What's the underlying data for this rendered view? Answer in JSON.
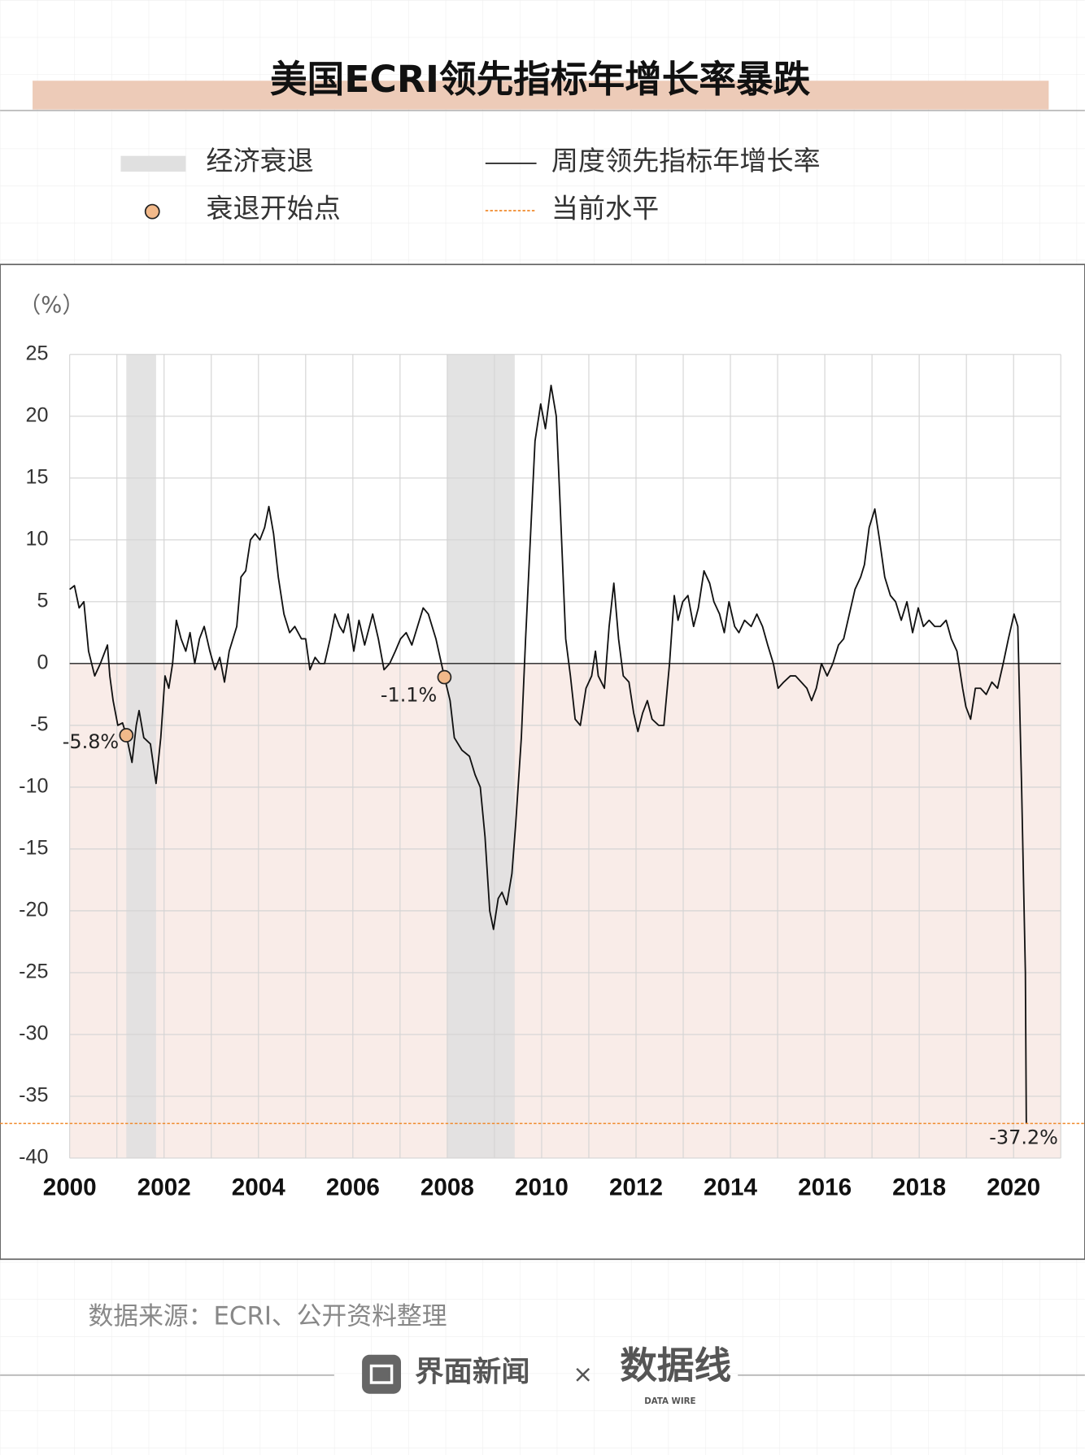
{
  "chart_data": {
    "type": "line",
    "title": "美国ECRI领先指标年增长率暴跌",
    "y_unit": "（%）",
    "x": [
      2000.0,
      2000.1,
      2000.2,
      2000.3,
      2000.4,
      2000.53,
      2000.65,
      2000.8,
      2000.85,
      2000.92,
      2001.02,
      2001.12,
      2001.2,
      2001.32,
      2001.41,
      2001.47,
      2001.57,
      2001.71,
      2001.83,
      2001.93,
      2002.02,
      2002.1,
      2002.18,
      2002.26,
      2002.36,
      2002.46,
      2002.55,
      2002.65,
      2002.75,
      2002.85,
      2002.97,
      2003.08,
      2003.18,
      2003.28,
      2003.38,
      2003.54,
      2003.63,
      2003.73,
      2003.83,
      2003.93,
      2004.03,
      2004.13,
      2004.22,
      2004.32,
      2004.42,
      2004.54,
      2004.66,
      2004.77,
      2004.91,
      2005.0,
      2005.09,
      2005.2,
      2005.3,
      2005.4,
      2005.52,
      2005.62,
      2005.72,
      2005.8,
      2005.9,
      2006.02,
      2006.13,
      2006.25,
      2006.42,
      2006.54,
      2006.66,
      2006.78,
      2006.9,
      2007.01,
      2007.13,
      2007.25,
      2007.37,
      2007.49,
      2007.6,
      2007.76,
      2007.94,
      2008.06,
      2008.15,
      2008.31,
      2008.47,
      2008.59,
      2008.7,
      2008.8,
      2008.9,
      2008.98,
      2009.08,
      2009.16,
      2009.26,
      2009.37,
      2009.45,
      2009.57,
      2009.66,
      2009.76,
      2009.86,
      2009.98,
      2010.08,
      2010.2,
      2010.31,
      2010.39,
      2010.51,
      2010.61,
      2010.71,
      2010.82,
      2010.94,
      2011.06,
      2011.14,
      2011.2,
      2011.33,
      2011.43,
      2011.53,
      2011.63,
      2011.73,
      2011.85,
      2011.95,
      2012.04,
      2012.14,
      2012.24,
      2012.34,
      2012.48,
      2012.59,
      2012.71,
      2012.81,
      2012.89,
      2012.99,
      2013.1,
      2013.22,
      2013.32,
      2013.44,
      2013.56,
      2013.65,
      2013.77,
      2013.87,
      2013.97,
      2014.09,
      2014.18,
      2014.3,
      2014.44,
      2014.56,
      2014.68,
      2014.79,
      2014.91,
      2015.01,
      2015.13,
      2015.27,
      2015.38,
      2015.5,
      2015.62,
      2015.72,
      2015.82,
      2015.93,
      2016.05,
      2016.17,
      2016.29,
      2016.4,
      2016.52,
      2016.64,
      2016.76,
      2016.84,
      2016.94,
      2017.06,
      2017.16,
      2017.27,
      2017.39,
      2017.5,
      2017.62,
      2017.74,
      2017.86,
      2017.98,
      2018.09,
      2018.21,
      2018.33,
      2018.45,
      2018.57,
      2018.68,
      2018.8,
      2018.92,
      2018.99,
      2019.09,
      2019.19,
      2019.3,
      2019.42,
      2019.54,
      2019.66,
      2019.78,
      2019.89,
      2020.01,
      2020.09,
      2020.17,
      2020.25,
      2020.27
    ],
    "series": [
      {
        "name": "周度领先指标年增长率",
        "color": "#111111",
        "values": [
          6,
          6.3,
          4.5,
          5,
          1,
          -1,
          0,
          1.5,
          -1,
          -3,
          -5,
          -4.8,
          -5.8,
          -8,
          -5,
          -3.8,
          -6,
          -6.5,
          -9.7,
          -6,
          -1,
          -2,
          0,
          3.5,
          2,
          1,
          2.5,
          0,
          2,
          3,
          1,
          -0.5,
          0.5,
          -1.5,
          1,
          3,
          7,
          7.5,
          10,
          10.5,
          10,
          11,
          12.7,
          10.5,
          7,
          4,
          2.5,
          3,
          2,
          2,
          -0.5,
          0.5,
          0,
          0,
          2,
          4,
          3,
          2.5,
          4,
          1,
          3.5,
          1.5,
          4,
          2,
          -0.5,
          0,
          1,
          2,
          2.5,
          1.5,
          3,
          4.5,
          4,
          2,
          -1.1,
          -3,
          -6,
          -7,
          -7.5,
          -9,
          -10,
          -14,
          -20,
          -21.5,
          -19,
          -18.5,
          -19.5,
          -17,
          -13,
          -6,
          2,
          10,
          18,
          21,
          19,
          22.5,
          20,
          13,
          2,
          -1,
          -4.5,
          -5,
          -2,
          -1,
          1,
          -1,
          -2,
          3,
          6.5,
          2,
          -1,
          -1.5,
          -4,
          -5.5,
          -4,
          -3,
          -4.5,
          -5,
          -5,
          0,
          5.5,
          3.5,
          5,
          5.5,
          3,
          4.5,
          7.5,
          6.5,
          5,
          4,
          2.5,
          5,
          3,
          2.5,
          3.5,
          3,
          4,
          3,
          1.5,
          0,
          -2,
          -1.5,
          -1,
          -1,
          -1.5,
          -2,
          -3,
          -2,
          0,
          -1,
          0,
          1.5,
          2,
          4,
          6,
          7,
          8,
          11,
          12.5,
          10,
          7,
          5.5,
          5,
          3.5,
          5,
          2.5,
          4.5,
          3,
          3.5,
          3,
          3,
          3.5,
          2,
          1,
          -2,
          -3.5,
          -4.5,
          -2,
          -2,
          -2.5,
          -1.5,
          -2,
          0,
          2,
          4,
          3,
          -10,
          -25,
          -37.2
        ]
      }
    ],
    "recessions": {
      "name": "经济衰退",
      "color": "#e0e0e0",
      "ranges": [
        [
          2001.2,
          2001.83
        ],
        [
          2008.0,
          2009.43
        ]
      ]
    },
    "recession_starts": {
      "name": "衰退开始点",
      "color": "#f2b98a",
      "x": [
        2001.2,
        2007.94
      ],
      "values": [
        -5.8,
        -1.1
      ],
      "value_labels": [
        "-5.8%",
        "-1.1%"
      ]
    },
    "current_level": {
      "name": "当前水平",
      "color": "#f08a2c",
      "value": -37.2,
      "value_label": "-37.2%"
    },
    "negative_fill": "#f9ece8",
    "xlim": [
      2000,
      2021
    ],
    "xticks": [
      2000,
      2002,
      2004,
      2006,
      2008,
      2010,
      2012,
      2014,
      2016,
      2018,
      2020
    ],
    "x_minor_ticks": [
      2001,
      2003,
      2005,
      2007,
      2009,
      2011,
      2013,
      2015,
      2017,
      2019,
      2021
    ],
    "ylim": [
      -40,
      25
    ],
    "yticks": [
      25,
      20,
      15,
      10,
      5,
      0,
      -5,
      -10,
      -15,
      -20,
      -25,
      -30,
      -35,
      -40
    ],
    "grid": true
  },
  "source": "数据来源：ECRI、公开资料整理",
  "footer": {
    "brand": "界面新闻",
    "separator": "×",
    "partner": "数据线",
    "partner_sub": "DATA WIRE"
  }
}
